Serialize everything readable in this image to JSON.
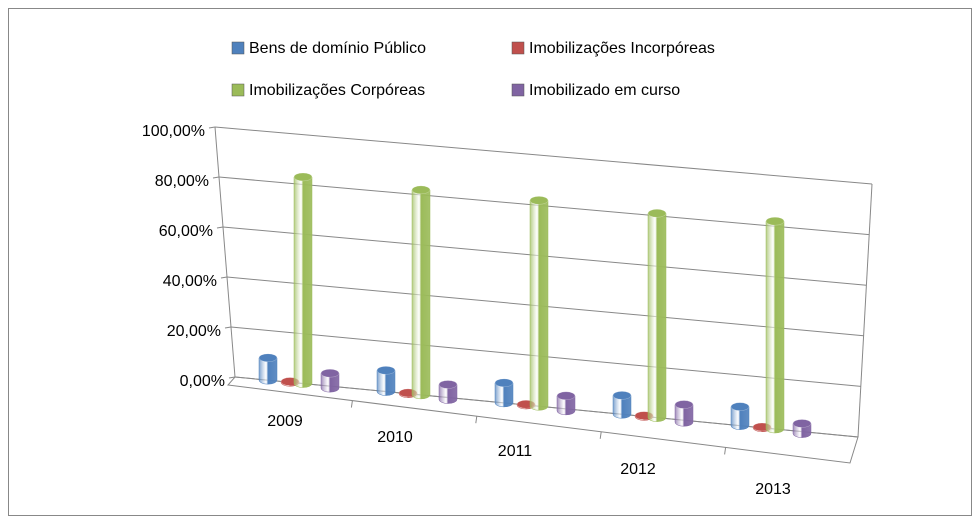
{
  "chart_data": {
    "type": "bar3d",
    "categories": [
      "2009",
      "2010",
      "2011",
      "2012",
      "2013"
    ],
    "series": [
      {
        "name": "Bens de domínio Público",
        "color": "#4f81bd",
        "values": [
          9,
          8.5,
          8,
          7.5,
          7.5
        ]
      },
      {
        "name": "Imobilizações Incorpóreas",
        "color": "#c0504d",
        "values": [
          0.3,
          0.3,
          0.3,
          0.3,
          0.3
        ]
      },
      {
        "name": "Imobilizações Corpóreas",
        "color": "#9bbb59",
        "values": [
          83,
          82,
          82,
          81,
          82
        ]
      },
      {
        "name": "Imobilizado em curso",
        "color": "#8064a2",
        "values": [
          6,
          6,
          6,
          7,
          4
        ]
      }
    ],
    "ylim": [
      0,
      100
    ],
    "yticks": [
      {
        "value": 0,
        "label": "0,00%"
      },
      {
        "value": 20,
        "label": "20,00%"
      },
      {
        "value": 40,
        "label": "40,00%"
      },
      {
        "value": 60,
        "label": "60,00%"
      },
      {
        "value": 80,
        "label": "80,00%"
      },
      {
        "value": 100,
        "label": "100,00%"
      }
    ],
    "grid": true,
    "legend": "top"
  }
}
